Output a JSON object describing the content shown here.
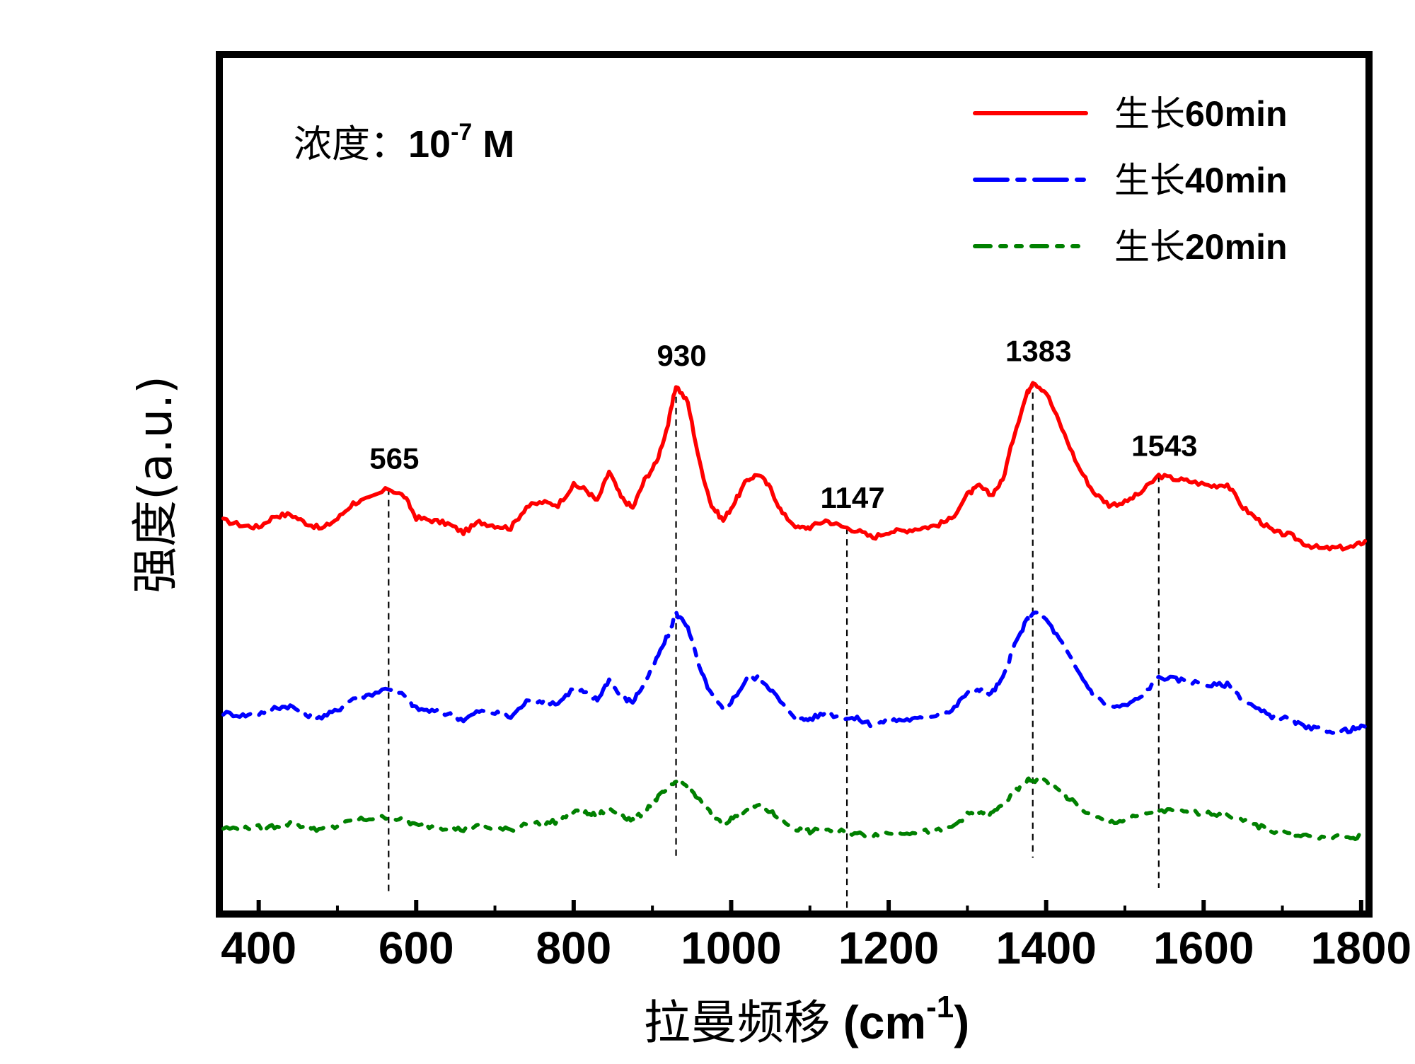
{
  "chart_data": {
    "type": "line",
    "xlabel": "拉曼频移",
    "xlabel_unit_prefix": "(cm",
    "xlabel_unit_sup": "-1",
    "xlabel_unit_suffix": ")",
    "ylabel": "强度(a.u.)",
    "annotation": {
      "label": "浓度：",
      "base": "10",
      "exponent": "-7",
      "unit": " M"
    },
    "xlim": [
      350,
      1810
    ],
    "ylim": [
      0,
      100
    ],
    "x_ticks": [
      400,
      600,
      800,
      1000,
      1200,
      1400,
      1600,
      1800
    ],
    "y_ticks_labeled": false,
    "peak_markers": [
      {
        "x": 565,
        "label": "565"
      },
      {
        "x": 930,
        "label": "930"
      },
      {
        "x": 1147,
        "label": "1147"
      },
      {
        "x": 1383,
        "label": "1383"
      },
      {
        "x": 1543,
        "label": "1543"
      }
    ],
    "legend_position": "top-right",
    "series": [
      {
        "name": "生长60min",
        "name_prefix": "生长",
        "name_suffix": "60min",
        "color": "#ff0000",
        "style": "solid",
        "baseline": 45,
        "points": [
          [
            355,
            45.8
          ],
          [
            380,
            45.2
          ],
          [
            400,
            45.0
          ],
          [
            420,
            46.3
          ],
          [
            440,
            46.5
          ],
          [
            460,
            45.5
          ],
          [
            480,
            44.8
          ],
          [
            500,
            46.0
          ],
          [
            520,
            47.8
          ],
          [
            540,
            48.3
          ],
          [
            565,
            49.5
          ],
          [
            585,
            48.6
          ],
          [
            600,
            46.1
          ],
          [
            620,
            45.8
          ],
          [
            640,
            45.4
          ],
          [
            660,
            44.4
          ],
          [
            680,
            45.6
          ],
          [
            700,
            45.2
          ],
          [
            720,
            44.9
          ],
          [
            740,
            47.4
          ],
          [
            760,
            47.9
          ],
          [
            780,
            47.6
          ],
          [
            800,
            49.9
          ],
          [
            815,
            49.4
          ],
          [
            830,
            48.0
          ],
          [
            845,
            51.5
          ],
          [
            860,
            48.5
          ],
          [
            875,
            47.2
          ],
          [
            890,
            50.5
          ],
          [
            905,
            52.5
          ],
          [
            920,
            57.0
          ],
          [
            930,
            61.5
          ],
          [
            945,
            59.5
          ],
          [
            960,
            52.5
          ],
          [
            975,
            47.5
          ],
          [
            990,
            45.8
          ],
          [
            1005,
            48.0
          ],
          [
            1020,
            50.5
          ],
          [
            1035,
            51.2
          ],
          [
            1050,
            49.5
          ],
          [
            1065,
            46.6
          ],
          [
            1085,
            44.9
          ],
          [
            1100,
            45.0
          ],
          [
            1120,
            45.8
          ],
          [
            1140,
            45.1
          ],
          [
            1160,
            44.6
          ],
          [
            1180,
            43.8
          ],
          [
            1200,
            44.5
          ],
          [
            1220,
            44.6
          ],
          [
            1240,
            44.9
          ],
          [
            1260,
            45.2
          ],
          [
            1280,
            46.0
          ],
          [
            1300,
            48.8
          ],
          [
            1315,
            49.8
          ],
          [
            1330,
            48.7
          ],
          [
            1345,
            50.5
          ],
          [
            1360,
            56.0
          ],
          [
            1375,
            60.4
          ],
          [
            1383,
            62.0
          ],
          [
            1400,
            60.7
          ],
          [
            1420,
            56.5
          ],
          [
            1440,
            52.2
          ],
          [
            1460,
            49.1
          ],
          [
            1480,
            47.6
          ],
          [
            1500,
            47.9
          ],
          [
            1520,
            49.0
          ],
          [
            1543,
            51.0
          ],
          [
            1565,
            50.6
          ],
          [
            1585,
            50.3
          ],
          [
            1610,
            49.8
          ],
          [
            1630,
            50.0
          ],
          [
            1650,
            47.3
          ],
          [
            1670,
            45.8
          ],
          [
            1690,
            44.4
          ],
          [
            1710,
            44.1
          ],
          [
            1730,
            43.0
          ],
          [
            1750,
            42.5
          ],
          [
            1770,
            42.6
          ],
          [
            1790,
            42.7
          ],
          [
            1805,
            43.4
          ]
        ]
      },
      {
        "name": "生长40min",
        "name_prefix": "生长",
        "name_suffix": "40min",
        "color": "#0000ff",
        "style": "dashdot",
        "baseline": 23,
        "points": [
          [
            355,
            23.4
          ],
          [
            380,
            23.1
          ],
          [
            400,
            23.3
          ],
          [
            420,
            24.0
          ],
          [
            440,
            24.2
          ],
          [
            460,
            23.2
          ],
          [
            480,
            22.9
          ],
          [
            500,
            23.7
          ],
          [
            520,
            25.1
          ],
          [
            540,
            25.5
          ],
          [
            565,
            26.3
          ],
          [
            585,
            25.4
          ],
          [
            600,
            23.9
          ],
          [
            620,
            23.6
          ],
          [
            640,
            23.3
          ],
          [
            660,
            22.6
          ],
          [
            680,
            23.6
          ],
          [
            700,
            23.4
          ],
          [
            720,
            22.9
          ],
          [
            740,
            24.7
          ],
          [
            760,
            24.8
          ],
          [
            780,
            24.5
          ],
          [
            800,
            26.3
          ],
          [
            815,
            25.7
          ],
          [
            830,
            24.9
          ],
          [
            845,
            27.3
          ],
          [
            860,
            25.2
          ],
          [
            875,
            24.7
          ],
          [
            890,
            26.9
          ],
          [
            905,
            29.6
          ],
          [
            920,
            32.5
          ],
          [
            930,
            35.0
          ],
          [
            945,
            33.5
          ],
          [
            960,
            28.5
          ],
          [
            975,
            25.5
          ],
          [
            990,
            23.7
          ],
          [
            1005,
            25.3
          ],
          [
            1020,
            27.3
          ],
          [
            1035,
            27.6
          ],
          [
            1050,
            26.2
          ],
          [
            1065,
            24.4
          ],
          [
            1085,
            22.6
          ],
          [
            1100,
            22.7
          ],
          [
            1120,
            23.4
          ],
          [
            1140,
            22.9
          ],
          [
            1160,
            22.7
          ],
          [
            1180,
            22.0
          ],
          [
            1200,
            22.5
          ],
          [
            1220,
            22.6
          ],
          [
            1240,
            22.7
          ],
          [
            1260,
            23.2
          ],
          [
            1280,
            23.6
          ],
          [
            1300,
            25.8
          ],
          [
            1315,
            26.2
          ],
          [
            1330,
            25.6
          ],
          [
            1345,
            27.4
          ],
          [
            1360,
            31.3
          ],
          [
            1375,
            34.1
          ],
          [
            1383,
            35.1
          ],
          [
            1400,
            34.3
          ],
          [
            1420,
            31.5
          ],
          [
            1440,
            28.3
          ],
          [
            1460,
            25.5
          ],
          [
            1480,
            24.1
          ],
          [
            1500,
            24.2
          ],
          [
            1520,
            25.2
          ],
          [
            1543,
            27.6
          ],
          [
            1565,
            27.3
          ],
          [
            1585,
            27.0
          ],
          [
            1610,
            26.6
          ],
          [
            1630,
            26.7
          ],
          [
            1650,
            25.0
          ],
          [
            1670,
            23.7
          ],
          [
            1690,
            22.9
          ],
          [
            1710,
            22.7
          ],
          [
            1730,
            21.6
          ],
          [
            1750,
            21.5
          ],
          [
            1770,
            21.2
          ],
          [
            1790,
            21.5
          ],
          [
            1805,
            21.8
          ]
        ]
      },
      {
        "name": "生长20min",
        "name_prefix": "生长",
        "name_suffix": "20min",
        "color": "#008000",
        "style": "dashdotdot",
        "baseline": 10,
        "points": [
          [
            355,
            10.0
          ],
          [
            380,
            9.9
          ],
          [
            400,
            10.1
          ],
          [
            420,
            10.2
          ],
          [
            440,
            10.5
          ],
          [
            460,
            10.2
          ],
          [
            480,
            9.8
          ],
          [
            500,
            10.2
          ],
          [
            520,
            10.9
          ],
          [
            540,
            11.1
          ],
          [
            565,
            11.3
          ],
          [
            585,
            10.9
          ],
          [
            600,
            10.3
          ],
          [
            620,
            10.2
          ],
          [
            640,
            10.0
          ],
          [
            660,
            9.8
          ],
          [
            680,
            10.2
          ],
          [
            700,
            9.9
          ],
          [
            720,
            9.8
          ],
          [
            740,
            10.6
          ],
          [
            760,
            10.5
          ],
          [
            780,
            10.8
          ],
          [
            800,
            11.9
          ],
          [
            815,
            11.7
          ],
          [
            830,
            11.5
          ],
          [
            845,
            12.3
          ],
          [
            860,
            11.5
          ],
          [
            875,
            10.8
          ],
          [
            890,
            12.0
          ],
          [
            905,
            13.4
          ],
          [
            920,
            14.6
          ],
          [
            930,
            15.4
          ],
          [
            945,
            14.9
          ],
          [
            960,
            13.2
          ],
          [
            975,
            11.6
          ],
          [
            990,
            10.6
          ],
          [
            1005,
            11.3
          ],
          [
            1020,
            12.3
          ],
          [
            1035,
            12.6
          ],
          [
            1050,
            11.9
          ],
          [
            1065,
            10.8
          ],
          [
            1085,
            9.8
          ],
          [
            1100,
            9.6
          ],
          [
            1120,
            9.8
          ],
          [
            1140,
            9.6
          ],
          [
            1160,
            9.3
          ],
          [
            1180,
            9.2
          ],
          [
            1200,
            9.4
          ],
          [
            1220,
            9.5
          ],
          [
            1240,
            9.6
          ],
          [
            1260,
            9.6
          ],
          [
            1280,
            10.1
          ],
          [
            1300,
            11.6
          ],
          [
            1315,
            11.9
          ],
          [
            1330,
            11.6
          ],
          [
            1345,
            12.7
          ],
          [
            1360,
            14.1
          ],
          [
            1375,
            15.5
          ],
          [
            1383,
            15.6
          ],
          [
            1400,
            15.4
          ],
          [
            1420,
            14.1
          ],
          [
            1440,
            12.6
          ],
          [
            1460,
            11.3
          ],
          [
            1480,
            10.7
          ],
          [
            1500,
            10.9
          ],
          [
            1520,
            11.5
          ],
          [
            1543,
            12.1
          ],
          [
            1565,
            11.9
          ],
          [
            1585,
            11.8
          ],
          [
            1610,
            11.7
          ],
          [
            1630,
            11.6
          ],
          [
            1650,
            10.8
          ],
          [
            1670,
            10.2
          ],
          [
            1690,
            9.6
          ],
          [
            1710,
            9.5
          ],
          [
            1730,
            9.1
          ],
          [
            1750,
            8.8
          ],
          [
            1770,
            8.9
          ],
          [
            1790,
            8.9
          ],
          [
            1805,
            9.1
          ]
        ]
      }
    ]
  }
}
